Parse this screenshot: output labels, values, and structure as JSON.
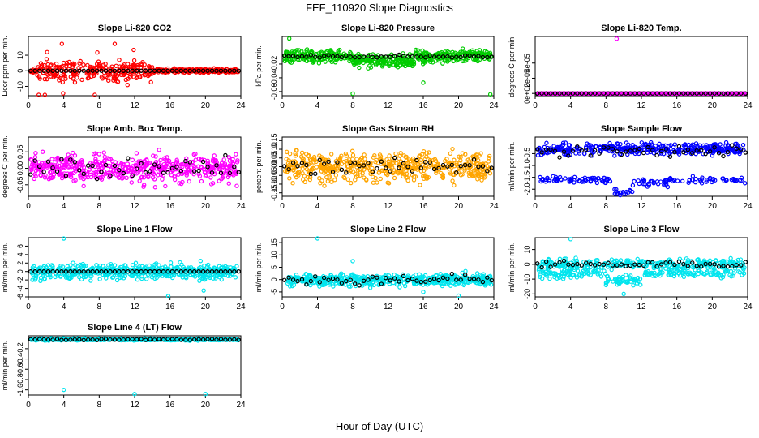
{
  "figure": {
    "title": "FEF_110920  Slope Diagnostics",
    "xlabel": "Hour of Day (UTC)"
  },
  "chart_data": [
    {
      "type": "scatter",
      "title": "Slope Li-820 CO2",
      "ylabel": "Licor ppm per min.",
      "color": "#ff0000",
      "xlim": [
        0,
        24
      ],
      "ylim": [
        -16,
        22
      ],
      "xticks": [
        0,
        4,
        8,
        12,
        16,
        20,
        24
      ],
      "yticks": [
        -10,
        0,
        10
      ],
      "ytick_labels": [
        "-10",
        "0",
        "10"
      ],
      "mode": "co2"
    },
    {
      "type": "scatter",
      "title": "Slope Li-820 Pressure",
      "ylabel": "kPa per min.",
      "color": "#00cc00",
      "xlim": [
        0,
        24
      ],
      "ylim": [
        -0.066,
        0.02
      ],
      "xticks": [
        0,
        4,
        8,
        12,
        16,
        20,
        24
      ],
      "yticks": [
        -0.06,
        -0.04,
        -0.02
      ],
      "ytick_labels": [
        "-0.06",
        "-0.04",
        "-0.02"
      ],
      "mode": "pressure"
    },
    {
      "type": "scatter",
      "title": "Slope Li-820 Temp.",
      "ylabel": "degrees C per min.",
      "color": "#ff00ff",
      "xlim": [
        0,
        24
      ],
      "ylim": [
        -3e-06,
        7.5e-05
      ],
      "xticks": [
        0,
        4,
        8,
        12,
        16,
        20,
        24
      ],
      "yticks": [
        0,
        2e-05,
        4e-05
      ],
      "ytick_labels": [
        "0e+00",
        "2e-05",
        "4e-05"
      ],
      "mode": "temp"
    },
    {
      "type": "scatter",
      "title": "Slope Amb. Box Temp.",
      "ylabel": "degrees C per min.",
      "color": "#ff00ff",
      "xlim": [
        0,
        24
      ],
      "ylim": [
        -0.085,
        0.095
      ],
      "xticks": [
        0,
        4,
        8,
        12,
        16,
        20,
        24
      ],
      "yticks": [
        -0.05,
        0,
        0.05
      ],
      "ytick_labels": [
        "-0.05",
        "0.00",
        "0.05"
      ],
      "mode": "boxtemp"
    },
    {
      "type": "scatter",
      "title": "Slope Gas Stream RH",
      "ylabel": "percent per min.",
      "color": "#ffa500",
      "xlim": [
        0,
        24
      ],
      "ylim": [
        -0.17,
        0.17
      ],
      "xticks": [
        0,
        4,
        8,
        12,
        16,
        20,
        24
      ],
      "yticks": [
        -0.15,
        -0.1,
        -0.05,
        0,
        0.05,
        0.1,
        0.15
      ],
      "ytick_labels": [
        "-0.15",
        "-0.10",
        "-0.05",
        "0.00",
        "0.05",
        "0.10",
        "0.15"
      ],
      "mode": "rh"
    },
    {
      "type": "scatter",
      "title": "Slope Sample Flow",
      "ylabel": "ml/min per min.",
      "color": "#0000ff",
      "xlim": [
        0,
        24
      ],
      "ylim": [
        -2.3,
        0.2
      ],
      "xticks": [
        0,
        4,
        8,
        12,
        16,
        20,
        24
      ],
      "yticks": [
        -2,
        -1.5,
        -1,
        -0.5
      ],
      "ytick_labels": [
        "-2.0",
        "-1.5",
        "-1.0",
        "-0.5"
      ],
      "mode": "sample"
    },
    {
      "type": "scatter",
      "title": "Slope Line 1 Flow",
      "ylabel": "ml/min per min.",
      "color": "#00e5ee",
      "xlim": [
        0,
        24
      ],
      "ylim": [
        -6,
        8
      ],
      "xticks": [
        0,
        4,
        8,
        12,
        16,
        20,
        24
      ],
      "yticks": [
        -6,
        -4,
        -2,
        0,
        2,
        4,
        6
      ],
      "ytick_labels": [
        "-6",
        "-4",
        "-2",
        "0",
        "2",
        "4",
        "6"
      ],
      "mode": "line1"
    },
    {
      "type": "scatter",
      "title": "Slope Line 2 Flow",
      "ylabel": "ml/min per min.",
      "color": "#00e5ee",
      "xlim": [
        0,
        24
      ],
      "ylim": [
        -7,
        17
      ],
      "xticks": [
        0,
        4,
        8,
        12,
        16,
        20,
        24
      ],
      "yticks": [
        -5,
        0,
        5,
        10,
        15
      ],
      "ytick_labels": [
        "-5",
        "0",
        "5",
        "10",
        "15"
      ],
      "mode": "line2"
    },
    {
      "type": "scatter",
      "title": "Slope Line 3 Flow",
      "ylabel": "ml/min per min.",
      "color": "#00e5ee",
      "xlim": [
        0,
        24
      ],
      "ylim": [
        -22,
        18
      ],
      "xticks": [
        0,
        4,
        8,
        12,
        16,
        20,
        24
      ],
      "yticks": [
        -20,
        -10,
        0,
        10
      ],
      "ytick_labels": [
        "-20",
        "-10",
        "0",
        "10"
      ],
      "mode": "line3"
    },
    {
      "type": "scatter",
      "title": "Slope Line 4 (LT) Flow",
      "ylabel": "ml/min per min.",
      "color": "#00e5ee",
      "xlim": [
        0,
        24
      ],
      "ylim": [
        -1.1,
        0.05
      ],
      "xticks": [
        0,
        4,
        8,
        12,
        16,
        20,
        24
      ],
      "yticks": [
        -1,
        -0.8,
        -0.6,
        -0.4,
        -0.2
      ],
      "ytick_labels": [
        "-1.0",
        "-0.8",
        "-0.6",
        "-0.4",
        "-0.2"
      ],
      "mode": "line4"
    }
  ]
}
